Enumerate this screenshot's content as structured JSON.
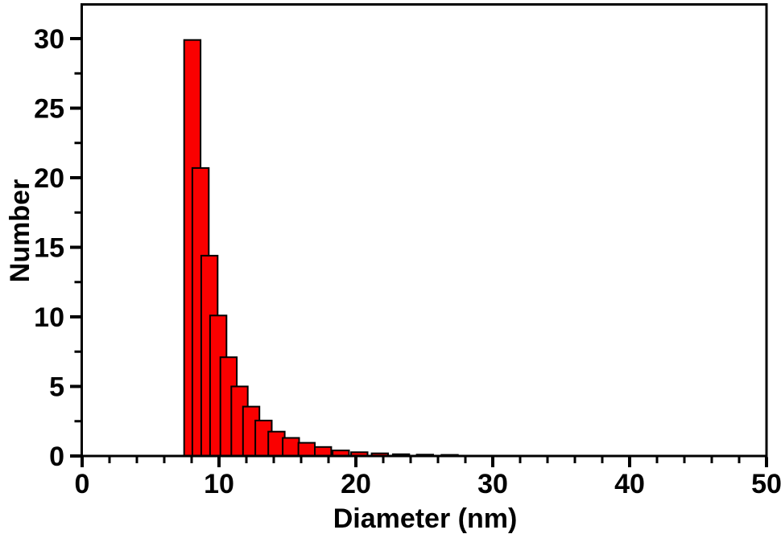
{
  "chart_data": {
    "type": "bar",
    "title": "",
    "xlabel": "Diameter (nm)",
    "ylabel": "Number",
    "xlim": [
      0,
      50
    ],
    "ylim": [
      0,
      32.5
    ],
    "x_major_ticks": [
      0,
      10,
      20,
      30,
      40,
      50
    ],
    "x_minor_step": 2,
    "y_major_ticks": [
      0,
      5,
      10,
      15,
      20,
      25,
      30
    ],
    "y_minor_step": 2.5,
    "grid": false,
    "legend": null,
    "background_color": "#ffffff",
    "axis_color": "#000000",
    "bar_color": "#fa0000",
    "bar_edge_color": "#000000",
    "bar_width_nm": 1.2,
    "x": [
      8.05,
      8.65,
      9.3,
      9.95,
      10.7,
      11.5,
      12.35,
      13.25,
      14.2,
      15.25,
      16.4,
      17.6,
      18.9,
      20.25,
      21.75,
      23.3,
      25.05,
      26.85
    ],
    "values": [
      29.9,
      20.7,
      14.4,
      10.1,
      7.1,
      5.0,
      3.55,
      2.55,
      1.75,
      1.3,
      0.95,
      0.65,
      0.4,
      0.27,
      0.19,
      0.13,
      0.1,
      0.08
    ]
  }
}
